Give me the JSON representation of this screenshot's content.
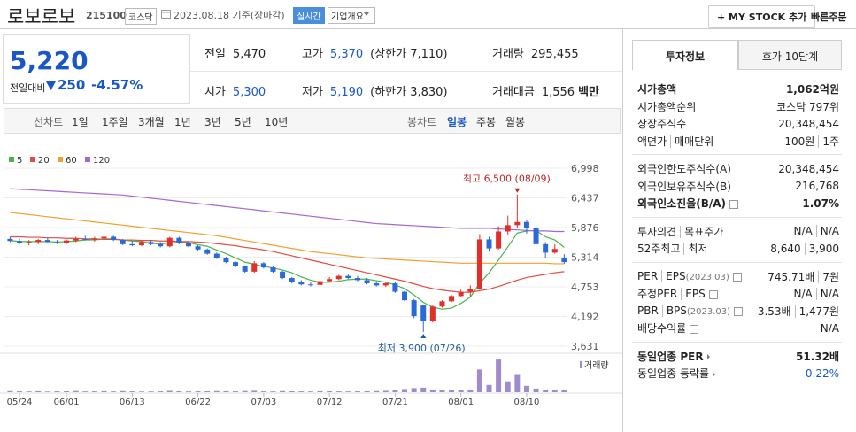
{
  "header": {
    "name": "로보로보",
    "code": "215100",
    "market": "코스닥",
    "date": "2023.08.18 기준(장마감)",
    "realtime": "실시간",
    "overview": "기업개요",
    "mystock": "+ MY STOCK 추가",
    "quick_order": "빠른주문"
  },
  "price": {
    "current": "5,220",
    "change_label": "전일대비",
    "change": "250",
    "change_pct": "-4.57%",
    "color": "#1a57c6"
  },
  "summary": {
    "rows": [
      [
        {
          "label": "전일",
          "value": "5,470"
        },
        {
          "label": "고가",
          "value": "5,370",
          "note": "(상한가 7,110)",
          "color": "#1a57c6"
        },
        {
          "label": "거래량",
          "value": "295,455"
        }
      ],
      [
        {
          "label": "시가",
          "value": "5,300",
          "color": "#1a57c6"
        },
        {
          "label": "저가",
          "value": "5,190",
          "note": "(하한가 3,830)",
          "color": "#1a57c6"
        },
        {
          "label": "거래대금",
          "value": "1,556",
          "unit": "백만"
        }
      ]
    ]
  },
  "tabs": {
    "line": [
      "선차트",
      "1일",
      "1주일",
      "3개월",
      "1년",
      "3년",
      "5년",
      "10년"
    ],
    "candle": [
      "봉차트",
      "일봉",
      "주봉",
      "월봉"
    ],
    "active": 1
  },
  "info": {
    "tabs": [
      "투자정보",
      "호가 10단계"
    ],
    "groups": [
      [
        {
          "label": [
            "시가총액"
          ],
          "value": [
            "1,062억원"
          ],
          "bold": true
        },
        {
          "label": [
            "시가총액순위"
          ],
          "value": [
            "코스닥 797위"
          ]
        },
        {
          "label": [
            "상장주식수"
          ],
          "value": [
            "20,348,454"
          ]
        },
        {
          "label": [
            "액면가",
            "매매단위"
          ],
          "value": [
            "100원",
            "1주"
          ]
        }
      ],
      [
        {
          "label": [
            "외국인한도주식수(A)"
          ],
          "value": [
            "20,348,454"
          ]
        },
        {
          "label": [
            "외국인보유주식수(B)"
          ],
          "value": [
            "216,768"
          ]
        },
        {
          "label": [
            "외국인소진율(B/A)"
          ],
          "value": [
            "1.07%"
          ],
          "bold": true,
          "help": true
        }
      ],
      [
        {
          "label": [
            "투자의견",
            "목표주가"
          ],
          "value": [
            "N/A",
            "N/A"
          ]
        },
        {
          "label": [
            "52주최고",
            "최저"
          ],
          "value": [
            "8,640",
            "3,900"
          ]
        }
      ],
      [
        {
          "label": [
            "PER",
            "EPS"
          ],
          "sub": "(2023.03)",
          "value": [
            "745.71배",
            "7원"
          ],
          "help": true
        },
        {
          "label": [
            "추정PER",
            "EPS"
          ],
          "value": [
            "N/A",
            "N/A"
          ],
          "help": true
        },
        {
          "label": [
            "PBR",
            "BPS"
          ],
          "sub": "(2023.03)",
          "value": [
            "3.53배",
            "1,477원"
          ],
          "help": true
        },
        {
          "label": [
            "배당수익률"
          ],
          "value": [
            "N/A"
          ],
          "help": true
        }
      ],
      [
        {
          "label": [
            "동일업종 PER"
          ],
          "value": [
            "51.32배"
          ],
          "bold": true,
          "link": true
        },
        {
          "label": [
            "동일업종 등락률"
          ],
          "value": [
            "-0.22%"
          ],
          "link": true,
          "color": "#1a57c6"
        }
      ]
    ]
  },
  "chart_data": {
    "type": "candlestick",
    "up_color": "#e0302c",
    "down_color": "#2a6ad8",
    "categories": [
      null,
      "05/24",
      null,
      null,
      null,
      null,
      "06/01",
      null,
      null,
      null,
      null,
      null,
      null,
      "06/13",
      null,
      null,
      null,
      null,
      null,
      null,
      "06/22",
      null,
      null,
      null,
      null,
      null,
      null,
      "07/03",
      null,
      null,
      null,
      null,
      null,
      null,
      "07/12",
      null,
      null,
      null,
      null,
      null,
      null,
      "07/21",
      null,
      null,
      null,
      null,
      null,
      null,
      "08/01",
      null,
      null,
      null,
      null,
      null,
      null,
      "08/10",
      null,
      null,
      null,
      null
    ],
    "open": [
      5660,
      5620,
      5580,
      5600,
      5640,
      5600,
      5580,
      5630,
      5660,
      5650,
      5670,
      5700,
      5640,
      5560,
      5540,
      5600,
      5560,
      5520,
      5680,
      5580,
      5520,
      5460,
      5380,
      5300,
      5220,
      5140,
      5040,
      5200,
      5120,
      5040,
      4920,
      4840,
      4800,
      4790,
      4860,
      4900,
      4960,
      4920,
      4880,
      4820,
      4780,
      4820,
      4660,
      4500,
      4400,
      4100,
      4380,
      4480,
      4580,
      4660,
      4720,
      5650,
      5480,
      5800,
      5920,
      5980,
      5860,
      5560,
      5400,
      5300
    ],
    "high": [
      5700,
      5660,
      5640,
      5660,
      5680,
      5640,
      5650,
      5700,
      5720,
      5700,
      5720,
      5720,
      5660,
      5620,
      5620,
      5640,
      5600,
      5700,
      5700,
      5600,
      5540,
      5480,
      5400,
      5320,
      5240,
      5160,
      5240,
      5220,
      5140,
      5060,
      4940,
      4880,
      4850,
      4880,
      4940,
      4980,
      5000,
      4960,
      4920,
      4860,
      4840,
      4850,
      4680,
      4520,
      4420,
      4400,
      4500,
      4600,
      4700,
      4780,
      5750,
      5700,
      5900,
      6100,
      6500,
      6020,
      5900,
      5600,
      5560,
      5370
    ],
    "low": [
      5600,
      5560,
      5540,
      5560,
      5580,
      5560,
      5560,
      5600,
      5630,
      5610,
      5640,
      5620,
      5540,
      5520,
      5520,
      5540,
      5500,
      5500,
      5560,
      5500,
      5440,
      5360,
      5280,
      5200,
      5120,
      5020,
      5020,
      5100,
      5020,
      4900,
      4820,
      4780,
      4760,
      4770,
      4840,
      4880,
      4900,
      4860,
      4800,
      4760,
      4750,
      4640,
      4480,
      4160,
      3900,
      4080,
      4360,
      4460,
      4560,
      4560,
      4700,
      5420,
      5460,
      5740,
      5860,
      5760,
      5520,
      5300,
      5380,
      5190
    ],
    "close": [
      5620,
      5580,
      5600,
      5640,
      5600,
      5580,
      5630,
      5660,
      5650,
      5670,
      5700,
      5640,
      5560,
      5540,
      5600,
      5560,
      5520,
      5680,
      5580,
      5520,
      5460,
      5380,
      5300,
      5220,
      5140,
      5040,
      5200,
      5120,
      5040,
      4920,
      4840,
      4800,
      4790,
      4860,
      4900,
      4960,
      4920,
      4880,
      4820,
      4780,
      4820,
      4660,
      4500,
      4200,
      4100,
      4380,
      4480,
      4580,
      4660,
      4720,
      5650,
      5480,
      5800,
      5920,
      5980,
      5860,
      5560,
      5400,
      5470,
      5220
    ],
    "series": [
      {
        "name": "5",
        "color": "#4ab34a",
        "values": [
          5630,
          5610,
          5610,
          5610,
          5610,
          5600,
          5610,
          5620,
          5640,
          5640,
          5660,
          5660,
          5640,
          5620,
          5610,
          5580,
          5560,
          5590,
          5590,
          5590,
          5550,
          5520,
          5450,
          5380,
          5300,
          5220,
          5180,
          5140,
          5110,
          5070,
          5020,
          4940,
          4880,
          4840,
          4840,
          4860,
          4890,
          4900,
          4900,
          4870,
          4840,
          4790,
          4720,
          4600,
          4460,
          4370,
          4330,
          4350,
          4440,
          4560,
          4820,
          5020,
          5260,
          5510,
          5770,
          5810,
          5820,
          5700,
          5640,
          5500
        ]
      },
      {
        "name": "20",
        "color": "#e14c44",
        "values": [
          5700,
          5700,
          5690,
          5690,
          5680,
          5680,
          5670,
          5670,
          5660,
          5660,
          5650,
          5650,
          5640,
          5640,
          5630,
          5630,
          5620,
          5620,
          5610,
          5610,
          5600,
          5590,
          5570,
          5550,
          5530,
          5500,
          5480,
          5450,
          5420,
          5380,
          5340,
          5300,
          5260,
          5220,
          5180,
          5140,
          5100,
          5060,
          5020,
          4980,
          4940,
          4900,
          4860,
          4810,
          4760,
          4720,
          4690,
          4670,
          4650,
          4650,
          4680,
          4710,
          4760,
          4820,
          4880,
          4930,
          4960,
          4990,
          5020,
          5040
        ]
      },
      {
        "name": "60",
        "color": "#f0a030",
        "values": [
          6160,
          6140,
          6120,
          6100,
          6080,
          6060,
          6040,
          6020,
          6000,
          5980,
          5960,
          5940,
          5920,
          5900,
          5880,
          5860,
          5840,
          5820,
          5800,
          5780,
          5760,
          5740,
          5720,
          5690,
          5660,
          5630,
          5600,
          5570,
          5540,
          5510,
          5480,
          5450,
          5420,
          5400,
          5380,
          5360,
          5340,
          5320,
          5300,
          5290,
          5280,
          5270,
          5260,
          5250,
          5240,
          5230,
          5220,
          5210,
          5200,
          5200,
          5200,
          5200,
          5200,
          5200,
          5200,
          5200,
          5200,
          5200,
          5190,
          5190
        ]
      },
      {
        "name": "120",
        "color": "#a468d0",
        "values": [
          6610,
          6600,
          6590,
          6580,
          6570,
          6560,
          6550,
          6540,
          6530,
          6520,
          6510,
          6500,
          6490,
          6470,
          6450,
          6430,
          6410,
          6390,
          6370,
          6350,
          6330,
          6310,
          6290,
          6270,
          6250,
          6230,
          6210,
          6190,
          6170,
          6150,
          6130,
          6110,
          6090,
          6070,
          6050,
          6030,
          6010,
          5990,
          5970,
          5950,
          5940,
          5930,
          5920,
          5910,
          5900,
          5890,
          5880,
          5870,
          5860,
          5860,
          5860,
          5860,
          5850,
          5840,
          5830,
          5820,
          5810,
          5810,
          5800,
          5800
        ]
      }
    ],
    "volume": {
      "name": "거래량",
      "color": "#a08ccc",
      "values": [
        120000,
        90000,
        80000,
        110000,
        70000,
        90000,
        100000,
        130000,
        80000,
        90000,
        110000,
        80000,
        120000,
        90000,
        70000,
        80000,
        90000,
        150000,
        100000,
        80000,
        90000,
        100000,
        120000,
        110000,
        90000,
        130000,
        160000,
        90000,
        80000,
        120000,
        100000,
        90000,
        80000,
        110000,
        100000,
        90000,
        80000,
        90000,
        100000,
        120000,
        150000,
        200000,
        350000,
        450000,
        500000,
        300000,
        250000,
        200000,
        280000,
        300000,
        2500000,
        800000,
        3600000,
        1200000,
        1900000,
        700000,
        400000,
        200000,
        250000,
        295455
      ]
    },
    "vlim": [
      0,
      4000000
    ],
    "ylim": [
      3514,
      7165
    ],
    "yticks": [
      {
        "value": 6998,
        "label": "6,998"
      },
      {
        "value": 6437,
        "label": "6,437"
      },
      {
        "value": 5876,
        "label": "5,876"
      },
      {
        "value": 5314,
        "label": "5,314"
      },
      {
        "value": 4753,
        "label": "4,753"
      },
      {
        "value": 4192,
        "label": "4,192"
      },
      {
        "value": 3631,
        "label": "3,631"
      }
    ],
    "grid": true,
    "high_label": "최고 6,500 (08/09)",
    "low_label": "최저 3,900 (07/26)",
    "high_color": "#b8282a",
    "low_color": "#1f5a9a"
  }
}
